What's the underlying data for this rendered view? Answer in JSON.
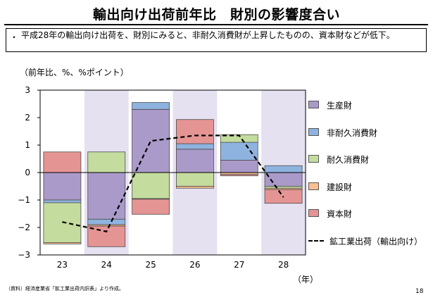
{
  "page": {
    "title": "輸出向け出荷前年比　財別の影響度合い",
    "bullet": "平成28年の輸出向け出荷を、財別にみると、非耐久消費財が上昇したものの、資本財などが低下。",
    "unit_label": "（前年比、%、%ポイント）",
    "source": "（資料）経済産業省「鉱工業出荷内訳表」より作成。",
    "page_number": "18"
  },
  "chart_data": {
    "type": "bar",
    "stacked": true,
    "categories": [
      "23",
      "24",
      "25",
      "26",
      "27",
      "28"
    ],
    "xlabel": "（年）",
    "ylim": [
      -3,
      3
    ],
    "yticks": [
      "3",
      "2",
      "1",
      "0",
      "−1",
      "−2",
      "−3"
    ],
    "highlighted_categories": [
      "24",
      "26",
      "28"
    ],
    "series": [
      {
        "name": "生産財",
        "type": "bar",
        "color": "#aa9ac9",
        "values": [
          -1.0,
          -1.7,
          2.3,
          0.85,
          0.45,
          -0.5
        ]
      },
      {
        "name": "非耐久消費財",
        "type": "bar",
        "color": "#8fb3df",
        "values": [
          -0.1,
          -0.2,
          0.25,
          0.2,
          0.65,
          0.25
        ]
      },
      {
        "name": "耐久消費財",
        "type": "bar",
        "color": "#c4dc9e",
        "values": [
          -1.45,
          0.75,
          -0.95,
          -0.5,
          0.28,
          -0.07
        ]
      },
      {
        "name": "建設財",
        "type": "bar",
        "color": "#f9bf90",
        "values": [
          -0.05,
          -0.05,
          -0.02,
          -0.07,
          -0.07,
          -0.05
        ]
      },
      {
        "name": "資本財",
        "type": "bar",
        "color": "#e59494",
        "values": [
          0.75,
          -0.75,
          -0.55,
          0.88,
          -0.05,
          -0.5
        ]
      },
      {
        "name": "鉱工業出荷（輸出向け）",
        "type": "line",
        "color": "#000000",
        "values": [
          -1.8,
          -2.15,
          1.15,
          1.35,
          1.35,
          -0.9
        ]
      }
    ],
    "legend_position": "right",
    "grid": false
  }
}
